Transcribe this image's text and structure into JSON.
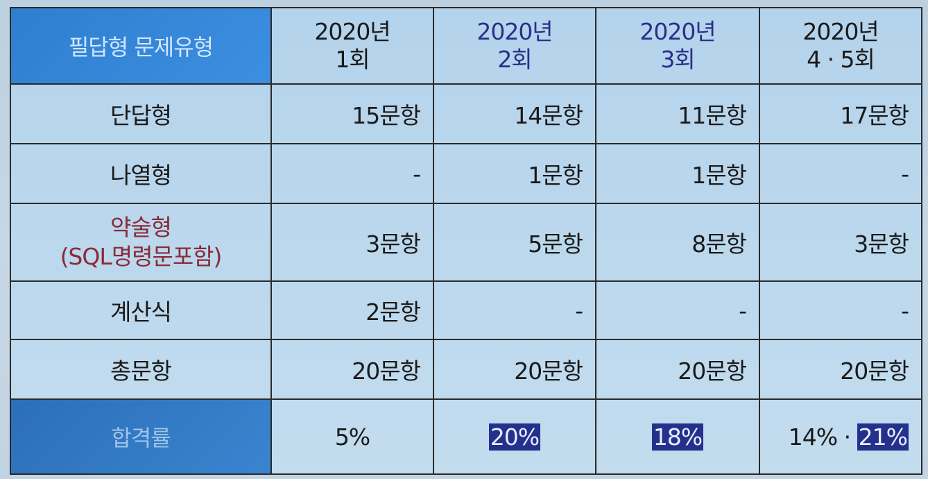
{
  "header": {
    "label": "필답형 문제유형",
    "columns": [
      {
        "line1": "2020년",
        "line2": "1회"
      },
      {
        "line1": "2020년",
        "line2": "2회"
      },
      {
        "line1": "2020년",
        "line2": "3회"
      },
      {
        "line1": "2020년",
        "line2": "4 · 5회"
      }
    ]
  },
  "rows": [
    {
      "label": "단답형",
      "values": [
        "15문항",
        "14문항",
        "11문항",
        "17문항"
      ]
    },
    {
      "label": "나열형",
      "values": [
        "-",
        "1문항",
        "1문항",
        "-"
      ]
    },
    {
      "label_line1": "약술형",
      "label_line2": "(SQL명령문포함)",
      "values": [
        "3문항",
        "5문항",
        "8문항",
        "3문항"
      ]
    },
    {
      "label": "계산식",
      "values": [
        "2문항",
        "-",
        "-",
        "-"
      ]
    },
    {
      "label": "총문항",
      "values": [
        "20문항",
        "20문항",
        "20문항",
        "20문항"
      ]
    }
  ],
  "pass_rate": {
    "label": "합격률",
    "values": [
      "5%",
      "20%",
      "18%"
    ],
    "last_part1": "14%",
    "last_sep": " · ",
    "last_part2": "21%"
  },
  "colors": {
    "header_blue": "#2f7fd0",
    "highlight_navy": "#24318c",
    "label_red": "#8a2a3a"
  }
}
